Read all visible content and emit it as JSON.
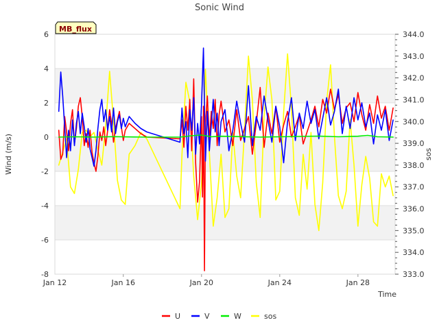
{
  "chart_data": {
    "type": "line",
    "title": "Sonic Wind",
    "badge": "MB_flux",
    "xlabel": "Time",
    "ylabel": "Wind (m/s)",
    "y2label": "sos",
    "xlim": [
      12.5,
      29.9
    ],
    "ylim": [
      -8,
      6
    ],
    "y2lim": [
      333,
      344
    ],
    "x_ticks": [
      12,
      16,
      20,
      24,
      28
    ],
    "x_tick_labels": [
      "Jan 12",
      "Jan 16",
      "Jan 20",
      "Jan 24",
      "Jan 28"
    ],
    "y_ticks": [
      -8,
      -6,
      -4,
      -2,
      0,
      2,
      4,
      6
    ],
    "y_tick_labels": [
      "-8",
      "-6",
      "-4",
      "-2",
      "0",
      "2",
      "4",
      "6"
    ],
    "y2_ticks": [
      333,
      334,
      335,
      336,
      337,
      338,
      339,
      340,
      341,
      342,
      343,
      344
    ],
    "y2_tick_labels": [
      "333.0",
      "334.0",
      "335.0",
      "336.0",
      "337.0",
      "338.0",
      "339.0",
      "340.0",
      "341.0",
      "342.0",
      "343.0",
      "344.0"
    ],
    "grid_bands": true,
    "legend_position": "bottom-center",
    "series": [
      {
        "name": "U",
        "color": "#ff0000",
        "axis": "left",
        "x": [
          12.7,
          12.8,
          12.9,
          13.0,
          13.1,
          13.2,
          13.3,
          13.4,
          13.5,
          13.6,
          13.7,
          13.8,
          13.9,
          14.0,
          14.1,
          14.2,
          14.3,
          14.4,
          14.5,
          14.6,
          14.7,
          14.8,
          14.9,
          15.0,
          15.1,
          15.2,
          15.3,
          15.4,
          15.5,
          15.6,
          15.7,
          15.8,
          15.9,
          16.0,
          16.1,
          16.3,
          16.6,
          16.9,
          17.2,
          18.9,
          19.0,
          19.1,
          19.2,
          19.3,
          19.4,
          19.5,
          19.6,
          19.7,
          19.8,
          19.9,
          20.0,
          20.05,
          20.1,
          20.15,
          20.2,
          20.3,
          20.4,
          20.5,
          20.6,
          20.7,
          20.8,
          20.9,
          21.0,
          21.2,
          21.4,
          21.6,
          21.8,
          22.0,
          22.2,
          22.4,
          22.6,
          22.8,
          23.0,
          23.2,
          23.4,
          23.6,
          23.8,
          24.0,
          24.2,
          24.4,
          24.6,
          24.8,
          25.0,
          25.2,
          25.4,
          25.6,
          25.8,
          26.0,
          26.2,
          26.4,
          26.6,
          26.8,
          27.0,
          27.2,
          27.4,
          27.6,
          27.8,
          28.0,
          28.2,
          28.4,
          28.6,
          28.8,
          29.0,
          29.2,
          29.4,
          29.6,
          29.8
        ],
        "y": [
          0.4,
          -1.3,
          -1.0,
          1.2,
          0.3,
          -0.8,
          0.8,
          1.6,
          -0.4,
          0.5,
          1.8,
          2.3,
          1.2,
          -0.5,
          0.2,
          -0.6,
          0.4,
          -0.9,
          -1.5,
          -2.0,
          -1.1,
          0.3,
          -0.2,
          0.6,
          -0.5,
          0.4,
          1.6,
          0.8,
          -0.3,
          0.5,
          1.0,
          1.5,
          0.6,
          -0.2,
          0.4,
          0.8,
          0.5,
          0.2,
          0.0,
          -0.1,
          1.0,
          -0.6,
          1.8,
          0.4,
          2.2,
          -0.8,
          3.4,
          -1.5,
          -3.8,
          -2.6,
          1.2,
          -3.5,
          1.8,
          -7.8,
          0.8,
          2.4,
          -0.2,
          1.5,
          0.5,
          2.2,
          -0.5,
          1.3,
          2.1,
          0.3,
          1.0,
          -0.5,
          1.6,
          -0.2,
          0.5,
          1.2,
          -1.0,
          0.8,
          2.9,
          -0.6,
          1.4,
          0.2,
          1.8,
          -0.3,
          0.7,
          1.5,
          0.0,
          0.6,
          1.3,
          -0.4,
          0.3,
          1.0,
          1.8,
          0.6,
          2.2,
          1.4,
          2.8,
          1.6,
          2.5,
          0.8,
          1.7,
          2.0,
          0.9,
          2.6,
          1.3,
          0.4,
          1.9,
          0.8,
          2.4,
          1.1,
          1.8,
          0.4,
          1.7
        ]
      },
      {
        "name": "V",
        "color": "#0000ff",
        "axis": "left",
        "x": [
          12.7,
          12.8,
          12.9,
          13.0,
          13.1,
          13.2,
          13.3,
          13.4,
          13.5,
          13.6,
          13.7,
          13.8,
          13.9,
          14.0,
          14.1,
          14.2,
          14.3,
          14.4,
          14.5,
          14.6,
          14.7,
          14.8,
          14.9,
          15.0,
          15.1,
          15.2,
          15.3,
          15.4,
          15.5,
          15.6,
          15.7,
          15.8,
          15.9,
          16.0,
          16.1,
          16.3,
          16.6,
          16.9,
          17.2,
          18.9,
          19.0,
          19.1,
          19.2,
          19.3,
          19.4,
          19.5,
          19.6,
          19.7,
          19.8,
          19.9,
          20.0,
          20.1,
          20.2,
          20.3,
          20.4,
          20.5,
          20.6,
          20.7,
          20.8,
          20.9,
          21.0,
          21.2,
          21.4,
          21.6,
          21.8,
          22.0,
          22.2,
          22.4,
          22.6,
          22.8,
          23.0,
          23.2,
          23.4,
          23.6,
          23.8,
          24.0,
          24.2,
          24.4,
          24.6,
          24.8,
          25.0,
          25.2,
          25.4,
          25.6,
          25.8,
          26.0,
          26.2,
          26.4,
          26.6,
          26.8,
          27.0,
          27.2,
          27.4,
          27.6,
          27.8,
          28.0,
          28.2,
          28.4,
          28.6,
          28.8,
          29.0,
          29.2,
          29.4,
          29.6,
          29.8
        ],
        "y": [
          1.5,
          3.8,
          2.4,
          0.6,
          -1.2,
          0.4,
          -0.8,
          1.0,
          -0.5,
          0.8,
          1.5,
          0.2,
          1.4,
          0.6,
          -0.3,
          0.5,
          -0.7,
          -1.2,
          -1.7,
          -0.8,
          0.5,
          1.6,
          2.2,
          0.9,
          1.6,
          0.4,
          1.2,
          0.3,
          1.7,
          0.2,
          0.9,
          1.3,
          0.5,
          1.1,
          0.6,
          1.2,
          0.8,
          0.5,
          0.3,
          -0.3,
          1.7,
          0.2,
          0.9,
          -1.2,
          1.6,
          0.4,
          2.3,
          -1.0,
          0.8,
          -0.4,
          1.9,
          5.2,
          -1.4,
          1.5,
          -0.8,
          0.7,
          2.2,
          0.3,
          1.4,
          -0.5,
          0.9,
          1.6,
          -0.8,
          0.4,
          2.1,
          0.8,
          -0.3,
          3.0,
          -0.5,
          1.2,
          0.4,
          2.4,
          1.0,
          -0.3,
          1.8,
          0.6,
          -1.5,
          0.9,
          2.3,
          -0.2,
          1.4,
          0.5,
          2.1,
          0.8,
          1.6,
          -0.1,
          1.1,
          2.3,
          0.7,
          1.5,
          2.8,
          0.2,
          1.8,
          0.5,
          2.3,
          1.0,
          2.0,
          0.6,
          1.4,
          -0.4,
          1.3,
          0.4,
          1.6,
          -0.2,
          1.0
        ]
      },
      {
        "name": "W",
        "color": "#00ee00",
        "axis": "left",
        "x": [
          12.7,
          13.5,
          14.5,
          15.5,
          16.5,
          17.2,
          18.9,
          19.5,
          20.0,
          20.5,
          21.0,
          22.0,
          23.0,
          24.0,
          25.0,
          26.0,
          27.0,
          28.0,
          28.5,
          29.0,
          29.8
        ],
        "y": [
          0.0,
          0.02,
          0.0,
          0.03,
          0.01,
          0.0,
          0.0,
          0.08,
          0.12,
          0.02,
          0.05,
          0.03,
          0.0,
          0.02,
          0.04,
          0.06,
          0.02,
          0.05,
          0.1,
          0.02,
          0.0
        ]
      },
      {
        "name": "sos",
        "color": "#ffff00",
        "axis": "right",
        "x": [
          12.7,
          12.9,
          13.1,
          13.3,
          13.5,
          13.7,
          13.9,
          14.1,
          14.3,
          14.5,
          14.7,
          14.9,
          15.1,
          15.3,
          15.5,
          15.7,
          15.9,
          16.1,
          16.3,
          16.6,
          16.9,
          17.2,
          18.9,
          19.0,
          19.2,
          19.4,
          19.6,
          19.8,
          20.0,
          20.2,
          20.4,
          20.6,
          20.8,
          21.0,
          21.2,
          21.4,
          21.6,
          21.8,
          22.0,
          22.2,
          22.4,
          22.6,
          22.8,
          23.0,
          23.2,
          23.4,
          23.6,
          23.8,
          24.0,
          24.2,
          24.4,
          24.6,
          24.8,
          25.0,
          25.2,
          25.4,
          25.6,
          25.8,
          26.0,
          26.2,
          26.4,
          26.6,
          26.8,
          27.0,
          27.2,
          27.4,
          27.6,
          27.8,
          28.0,
          28.2,
          28.4,
          28.6,
          28.8,
          29.0,
          29.2,
          29.4,
          29.6,
          29.8
        ],
        "y": [
          338.0,
          338.6,
          339.2,
          337.0,
          336.7,
          337.8,
          339.5,
          339.6,
          339.3,
          339.5,
          338.7,
          338.0,
          339.8,
          342.3,
          340.0,
          337.3,
          336.4,
          336.2,
          338.5,
          338.9,
          339.5,
          339.2,
          336.0,
          338.5,
          341.8,
          340.9,
          337.5,
          335.5,
          337.2,
          342.4,
          338.6,
          335.2,
          336.5,
          338.5,
          335.6,
          336.0,
          339.5,
          337.5,
          336.5,
          339.6,
          343.0,
          341.0,
          337.2,
          335.6,
          340.2,
          342.5,
          341.0,
          336.4,
          336.8,
          340.4,
          343.1,
          340.6,
          336.5,
          335.7,
          338.5,
          336.9,
          339.5,
          336.2,
          335.0,
          337.2,
          340.9,
          342.6,
          339.3,
          336.6,
          336.0,
          336.8,
          340.1,
          338.0,
          335.2,
          337.1,
          338.4,
          337.4,
          335.4,
          335.2,
          337.6,
          337.0,
          337.5,
          336.6
        ]
      }
    ]
  }
}
